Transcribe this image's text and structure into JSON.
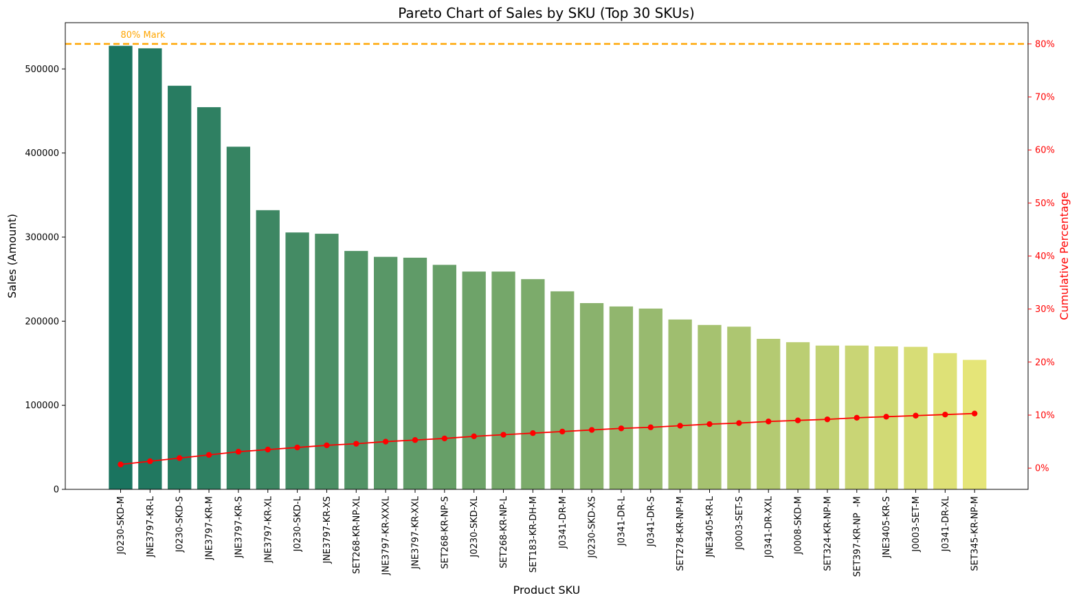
{
  "chart_data": {
    "type": "bar",
    "title": "Pareto Chart of Sales by SKU (Top 30 SKUs)",
    "xlabel": "Product SKU",
    "ylabel": "Sales (Amount)",
    "y2label": "Cumulative Percentage",
    "ylim": [
      0,
      555000
    ],
    "y2lim": [
      -4,
      84
    ],
    "yticks": [
      0,
      100000,
      200000,
      300000,
      400000,
      500000
    ],
    "y2ticks": [
      0,
      10,
      20,
      30,
      40,
      50,
      60,
      70,
      80
    ],
    "y2tick_suffix": "%",
    "categories": [
      "J0230-SKD-M",
      "JNE3797-KR-L",
      "J0230-SKD-S",
      "JNE3797-KR-M",
      "JNE3797-KR-S",
      "JNE3797-KR-XL",
      "J0230-SKD-L",
      "JNE3797-KR-XS",
      "SET268-KR-NP-XL",
      "JNE3797-KR-XXXL",
      "JNE3797-KR-XXL",
      "SET268-KR-NP-S",
      "J0230-SKD-XL",
      "SET268-KR-NP-L",
      "SET183-KR-DH-M",
      "J0341-DR-M",
      "J0230-SKD-XS",
      "J0341-DR-L",
      "J0341-DR-S",
      "SET278-KR-NP-M",
      "JNE3405-KR-L",
      "J0003-SET-S",
      "J0341-DR-XXL",
      "J0008-SKD-M",
      "SET324-KR-NP-M",
      "SET397-KR-NP  -M",
      "JNE3405-KR-S",
      "J0003-SET-M",
      "J0341-DR-XL",
      "SET345-KR-NP-M"
    ],
    "series": [
      {
        "type": "bar",
        "axis": "left",
        "values": [
          527500,
          524500,
          480000,
          454500,
          407500,
          332000,
          305500,
          304000,
          283500,
          276500,
          275500,
          267000,
          259000,
          259000,
          250000,
          235500,
          221500,
          217500,
          215000,
          202000,
          195500,
          193500,
          179000,
          175000,
          171000,
          171000,
          170000,
          169500,
          162000,
          154000
        ]
      },
      {
        "type": "line",
        "axis": "right",
        "color": "#ff0000",
        "values": [
          0.7,
          1.3,
          1.9,
          2.5,
          3.1,
          3.5,
          3.9,
          4.3,
          4.6,
          5.0,
          5.3,
          5.6,
          6.0,
          6.3,
          6.6,
          6.9,
          7.2,
          7.5,
          7.7,
          8.0,
          8.3,
          8.5,
          8.8,
          9.0,
          9.2,
          9.5,
          9.7,
          9.9,
          10.1,
          10.3
        ]
      }
    ],
    "reference_line": {
      "value": 80,
      "axis": "right",
      "label": "80% Mark",
      "color": "#ffa500"
    },
    "bar_colormap": "summer_r",
    "grid": false
  }
}
